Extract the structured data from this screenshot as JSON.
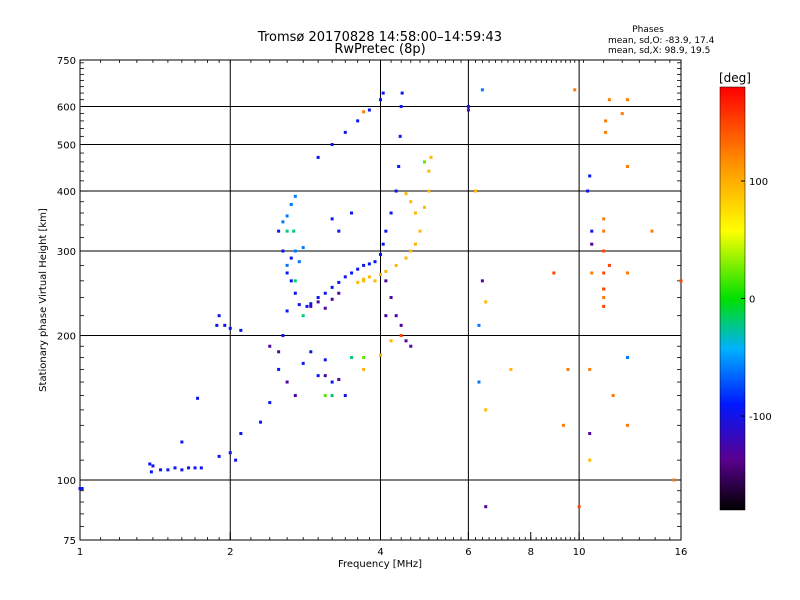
{
  "chart_data": {
    "type": "scatter",
    "title": "Tromsø 20170828 14:58:00–14:59:43",
    "subtitle": "RwPretec (8p)",
    "xlabel": "Frequency [MHz]",
    "ylabel": "Stationary phase Virtual Height [km]",
    "x_scale": "log",
    "y_scale": "log",
    "xlim": [
      1,
      16
    ],
    "ylim": [
      75,
      750
    ],
    "x_ticks": [
      1,
      2,
      4,
      6,
      8,
      10,
      16
    ],
    "x_tick_labels": [
      "1",
      "2",
      "4",
      "6",
      "8",
      "10",
      "16"
    ],
    "y_ticks": [
      75,
      100,
      200,
      300,
      400,
      500,
      600,
      750
    ],
    "y_tick_labels": [
      "75",
      "100",
      "200",
      "300",
      "400",
      "500",
      "600",
      "750"
    ],
    "grid": true,
    "phases_legend": {
      "title": "Phases",
      "line_o": "mean, sd,O: -83.9, 17.4",
      "line_x": "mean, sd,X:  98.9, 19.5"
    },
    "colorbar": {
      "label": "[deg]",
      "range": [
        -180,
        180
      ],
      "ticks": [
        100,
        0,
        -100
      ],
      "tick_labels": [
        "100",
        "0",
        "-100"
      ]
    },
    "series": [
      {
        "phase": -95,
        "points": [
          [
            1.0,
            96
          ],
          [
            1.01,
            96
          ],
          [
            1.38,
            108
          ],
          [
            1.39,
            104
          ],
          [
            1.4,
            107
          ],
          [
            1.45,
            105
          ],
          [
            1.5,
            105
          ],
          [
            1.55,
            106
          ],
          [
            1.6,
            105
          ],
          [
            1.65,
            106
          ],
          [
            1.7,
            106
          ],
          [
            1.75,
            106
          ],
          [
            1.6,
            120
          ],
          [
            1.72,
            148
          ],
          [
            1.88,
            210
          ],
          [
            1.9,
            220
          ],
          [
            1.95,
            210
          ],
          [
            2.0,
            207
          ],
          [
            2.1,
            205
          ],
          [
            1.9,
            112
          ],
          [
            2.0,
            114
          ],
          [
            2.05,
            110
          ],
          [
            2.1,
            125
          ],
          [
            2.3,
            132
          ],
          [
            2.4,
            145
          ],
          [
            2.5,
            170
          ],
          [
            2.55,
            200
          ],
          [
            2.6,
            225
          ],
          [
            2.65,
            260
          ],
          [
            2.6,
            270
          ],
          [
            2.7,
            245
          ],
          [
            2.75,
            232
          ],
          [
            2.85,
            230
          ],
          [
            2.9,
            233
          ],
          [
            3.0,
            240
          ],
          [
            3.1,
            245
          ],
          [
            3.2,
            252
          ],
          [
            3.3,
            258
          ],
          [
            3.4,
            265
          ],
          [
            3.5,
            270
          ],
          [
            3.6,
            275
          ],
          [
            3.7,
            280
          ],
          [
            3.8,
            282
          ],
          [
            3.9,
            285
          ],
          [
            4.0,
            295
          ],
          [
            4.05,
            310
          ],
          [
            4.1,
            330
          ],
          [
            4.2,
            360
          ],
          [
            4.3,
            400
          ],
          [
            4.35,
            450
          ],
          [
            4.38,
            520
          ],
          [
            4.4,
            600
          ],
          [
            4.42,
            640
          ],
          [
            3.0,
            470
          ],
          [
            3.2,
            500
          ],
          [
            3.4,
            530
          ],
          [
            3.6,
            560
          ],
          [
            3.8,
            590
          ],
          [
            4.0,
            620
          ],
          [
            4.05,
            640
          ],
          [
            2.5,
            330
          ],
          [
            2.55,
            300
          ],
          [
            2.65,
            290
          ],
          [
            2.8,
            175
          ],
          [
            3.0,
            165
          ],
          [
            3.2,
            160
          ],
          [
            3.4,
            150
          ],
          [
            2.9,
            185
          ],
          [
            3.1,
            178
          ],
          [
            3.2,
            350
          ],
          [
            3.3,
            330
          ],
          [
            3.5,
            360
          ],
          [
            6.0,
            600
          ],
          [
            10.5,
            430
          ],
          [
            10.6,
            330
          ],
          [
            10.4,
            400
          ]
        ]
      },
      {
        "phase": -130,
        "points": [
          [
            2.4,
            190
          ],
          [
            2.5,
            185
          ],
          [
            2.6,
            160
          ],
          [
            2.7,
            150
          ],
          [
            3.1,
            165
          ],
          [
            3.3,
            162
          ],
          [
            2.9,
            230
          ],
          [
            3.0,
            235
          ],
          [
            3.1,
            228
          ],
          [
            3.2,
            238
          ],
          [
            3.3,
            245
          ],
          [
            4.1,
            260
          ],
          [
            4.2,
            240
          ],
          [
            4.3,
            220
          ],
          [
            4.4,
            210
          ],
          [
            4.5,
            195
          ],
          [
            4.6,
            190
          ],
          [
            4.1,
            220
          ],
          [
            6.0,
            590
          ],
          [
            6.4,
            260
          ],
          [
            6.5,
            88
          ],
          [
            10.5,
            125
          ],
          [
            10.6,
            310
          ]
        ]
      },
      {
        "phase": -60,
        "points": [
          [
            2.6,
            280
          ],
          [
            2.7,
            300
          ],
          [
            2.8,
            305
          ],
          [
            2.55,
            345
          ],
          [
            2.6,
            355
          ],
          [
            2.65,
            375
          ],
          [
            2.7,
            390
          ],
          [
            2.75,
            285
          ],
          [
            6.3,
            210
          ],
          [
            6.3,
            160
          ],
          [
            6.4,
            650
          ],
          [
            12.5,
            180
          ]
        ]
      },
      {
        "phase": -20,
        "points": [
          [
            2.6,
            330
          ],
          [
            2.7,
            260
          ],
          [
            2.8,
            220
          ],
          [
            3.2,
            150
          ],
          [
            3.5,
            180
          ],
          [
            2.68,
            330
          ]
        ]
      },
      {
        "phase": 20,
        "points": [
          [
            3.1,
            150
          ],
          [
            3.7,
            180
          ],
          [
            4.9,
            460
          ]
        ]
      },
      {
        "phase": 95,
        "points": [
          [
            3.6,
            258
          ],
          [
            3.7,
            262
          ],
          [
            3.8,
            265
          ],
          [
            3.9,
            260
          ],
          [
            4.0,
            268
          ],
          [
            4.1,
            272
          ],
          [
            4.3,
            280
          ],
          [
            4.5,
            290
          ],
          [
            4.6,
            300
          ],
          [
            4.7,
            310
          ],
          [
            4.8,
            330
          ],
          [
            4.9,
            370
          ],
          [
            5.0,
            400
          ],
          [
            5.0,
            440
          ],
          [
            5.05,
            470
          ],
          [
            4.7,
            360
          ],
          [
            4.6,
            380
          ],
          [
            4.5,
            395
          ],
          [
            3.7,
            260
          ],
          [
            4.0,
            182
          ],
          [
            4.2,
            195
          ],
          [
            6.2,
            400
          ],
          [
            6.5,
            235
          ],
          [
            6.5,
            140
          ],
          [
            7.3,
            170
          ],
          [
            3.7,
            170
          ],
          [
            10.5,
            110
          ]
        ]
      },
      {
        "phase": 125,
        "points": [
          [
            3.7,
            585
          ],
          [
            9.3,
            130
          ],
          [
            9.5,
            170
          ],
          [
            9.8,
            650
          ],
          [
            10.5,
            170
          ],
          [
            10.6,
            270
          ],
          [
            11.2,
            250
          ],
          [
            11.2,
            330
          ],
          [
            11.2,
            350
          ],
          [
            11.5,
            620
          ],
          [
            11.3,
            530
          ],
          [
            11.3,
            560
          ],
          [
            11.2,
            240
          ],
          [
            12.5,
            130
          ],
          [
            12.5,
            270
          ],
          [
            12.5,
            450
          ],
          [
            12.2,
            580
          ],
          [
            12.5,
            620
          ],
          [
            14.0,
            330
          ],
          [
            15.5,
            100
          ],
          [
            11.7,
            150
          ]
        ]
      },
      {
        "phase": 150,
        "points": [
          [
            8.9,
            270
          ],
          [
            10.0,
            88
          ],
          [
            11.2,
            270
          ],
          [
            11.2,
            300
          ],
          [
            11.2,
            250
          ],
          [
            11.2,
            230
          ],
          [
            11.5,
            280
          ],
          [
            16.0,
            260
          ],
          [
            4.4,
            200
          ]
        ]
      }
    ]
  }
}
